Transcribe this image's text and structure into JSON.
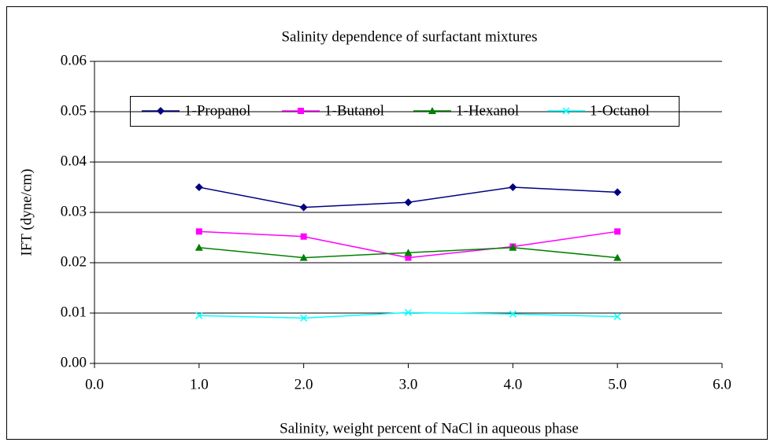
{
  "chart_data": {
    "type": "line",
    "title": "Salinity dependence of surfactant mixtures",
    "xlabel": "Salinity, weight percent of NaCl in aqueous phase",
    "ylabel": "IFT (dyne/cm)",
    "x": [
      1,
      2,
      3,
      4,
      5
    ],
    "series": [
      {
        "name": "1-Propanol",
        "color": "#000080",
        "marker": "diamond",
        "values": [
          0.035,
          0.031,
          0.032,
          0.035,
          0.034
        ]
      },
      {
        "name": "1-Butanol",
        "color": "#ff00ff",
        "marker": "square",
        "values": [
          0.0262,
          0.0252,
          0.021,
          0.0232,
          0.0262
        ]
      },
      {
        "name": "1-Hexanol",
        "color": "#008000",
        "marker": "triangle",
        "values": [
          0.023,
          0.021,
          0.022,
          0.023,
          0.021
        ]
      },
      {
        "name": "1-Octanol",
        "color": "#00ffff",
        "marker": "x",
        "values": [
          0.0095,
          0.009,
          0.0101,
          0.0098,
          0.0093
        ]
      }
    ],
    "xlim": [
      0,
      6
    ],
    "xticks": [
      {
        "value": 0,
        "label": "0.0"
      },
      {
        "value": 1,
        "label": "1.0"
      },
      {
        "value": 2,
        "label": "2.0"
      },
      {
        "value": 3,
        "label": "3.0"
      },
      {
        "value": 4,
        "label": "4.0"
      },
      {
        "value": 5,
        "label": "5.0"
      },
      {
        "value": 6,
        "label": "6.0"
      }
    ],
    "ylim": [
      0,
      0.06
    ],
    "yticks": [
      {
        "value": 0,
        "label": "0.00"
      },
      {
        "value": 0.01,
        "label": "0.01"
      },
      {
        "value": 0.02,
        "label": "0.02"
      },
      {
        "value": 0.03,
        "label": "0.03"
      },
      {
        "value": 0.04,
        "label": "0.04"
      },
      {
        "value": 0.05,
        "label": "0.05"
      },
      {
        "value": 0.06,
        "label": "0.06"
      }
    ],
    "grid": true,
    "legend": "top"
  }
}
